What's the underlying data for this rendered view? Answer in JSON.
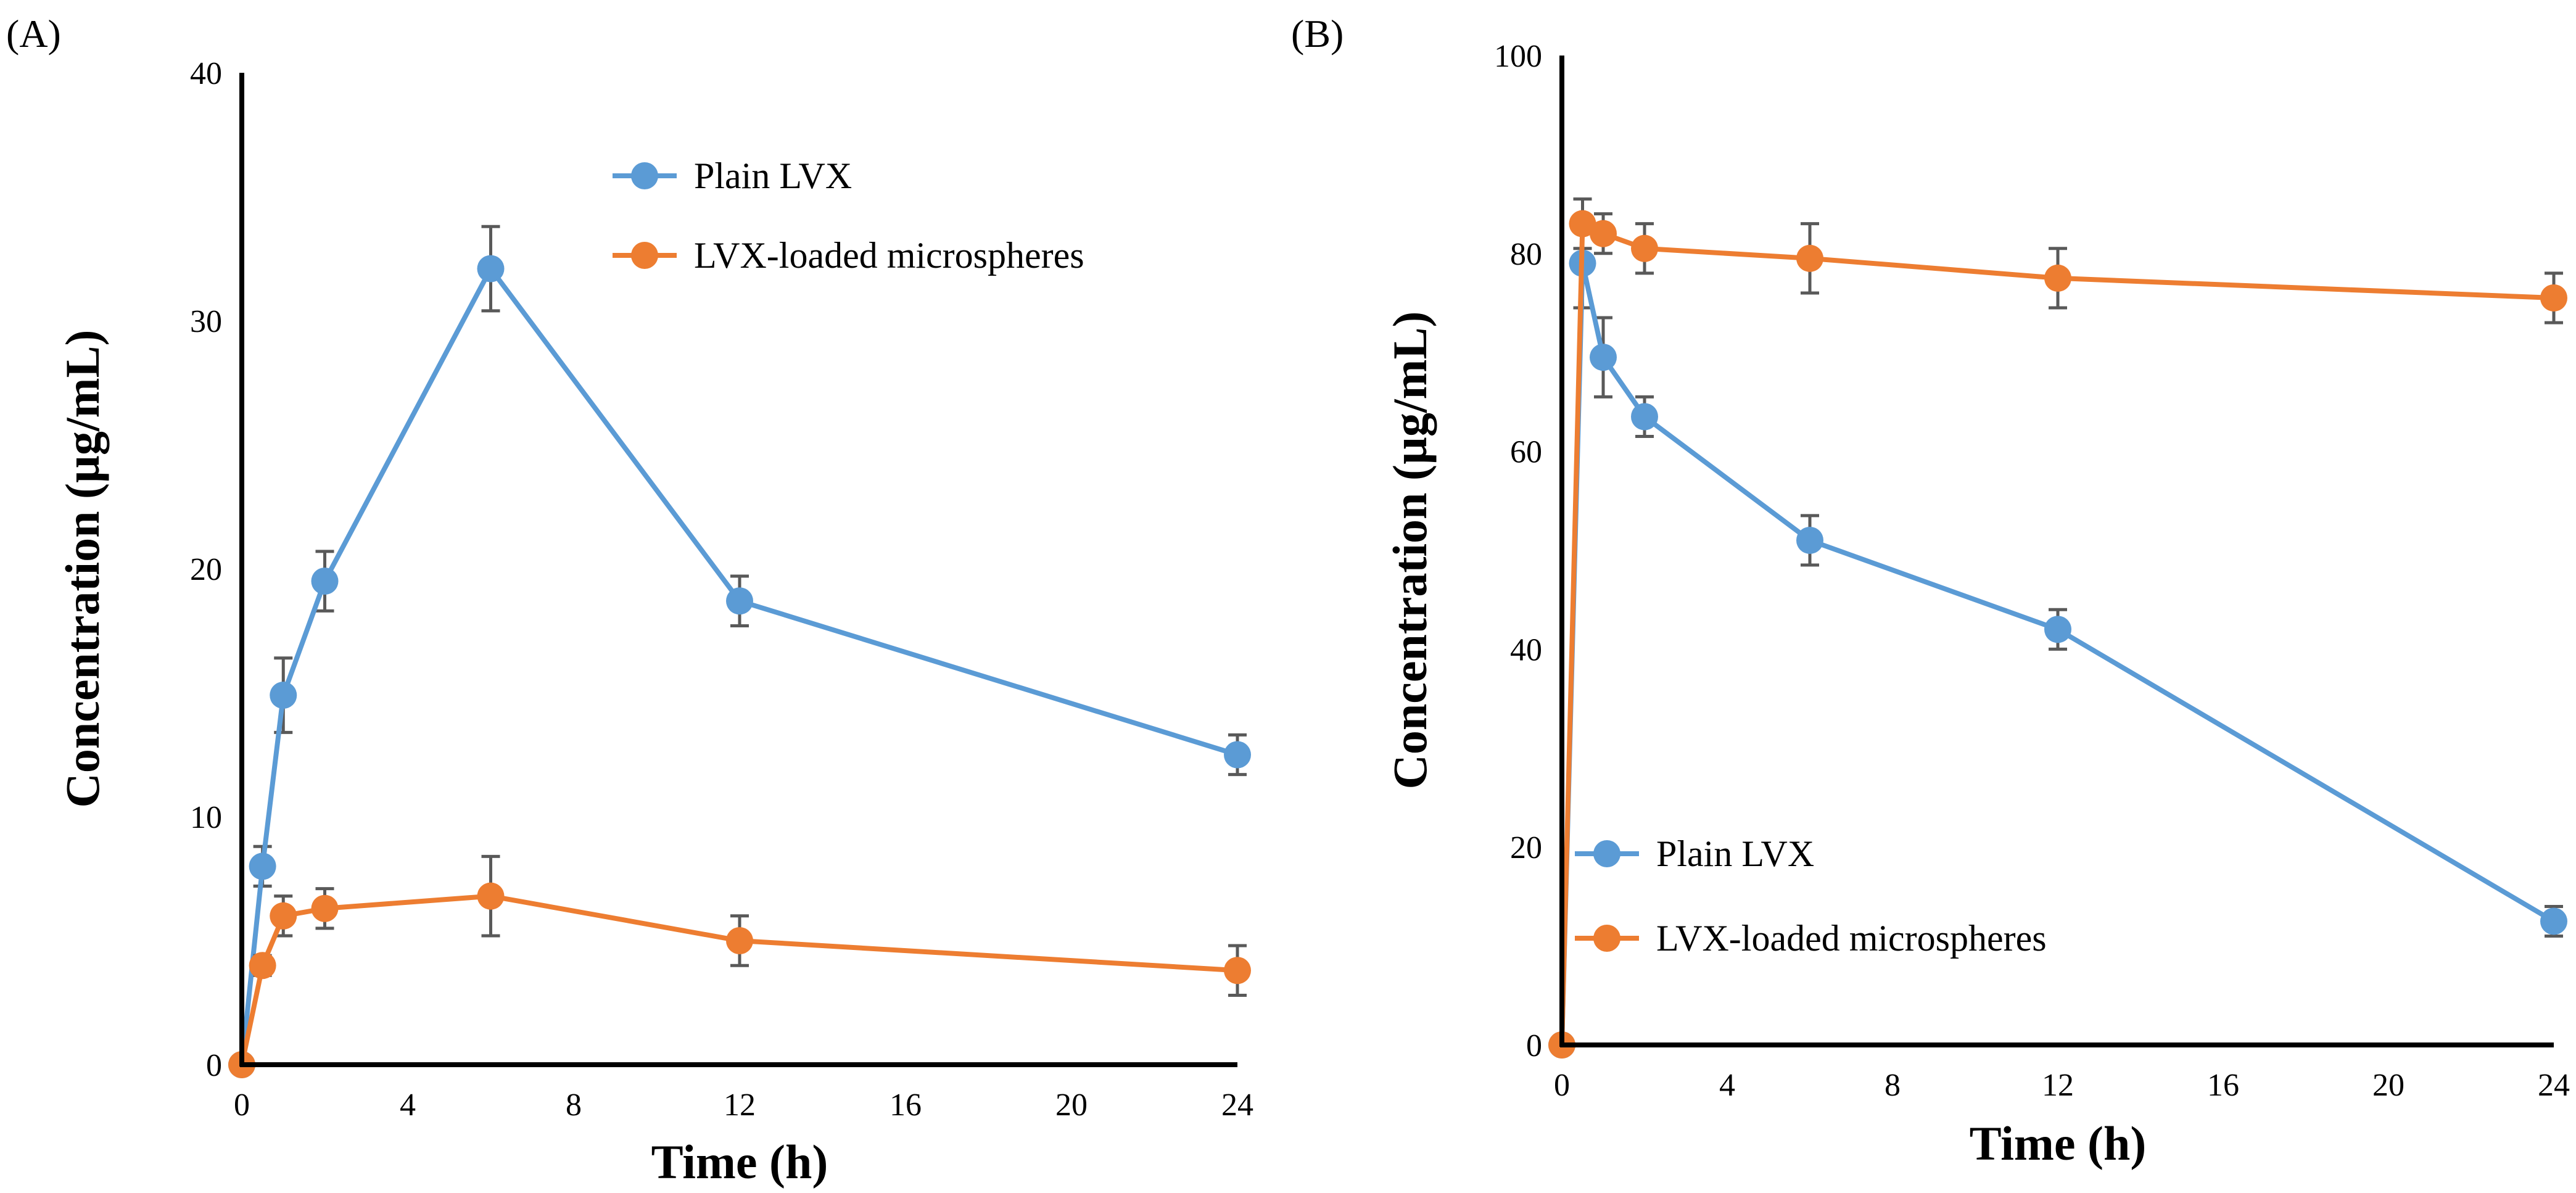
{
  "chart_data": [
    {
      "type": "line",
      "panel_label": "(A)",
      "xlabel": "Time (h)",
      "ylabel": "Concentration (µg/mL)",
      "xlim": [
        0,
        24
      ],
      "ylim": [
        0,
        40
      ],
      "xticks": [
        0,
        4,
        8,
        12,
        16,
        20,
        24
      ],
      "yticks": [
        0,
        10,
        20,
        30,
        40
      ],
      "grid": false,
      "legend_position": "top-right",
      "series": [
        {
          "name": "Plain LVX",
          "color": "#5B9BD5",
          "x": [
            0,
            0.5,
            1,
            2,
            6,
            12,
            24
          ],
          "y": [
            0,
            8.0,
            14.9,
            19.5,
            32.1,
            18.7,
            12.5
          ],
          "err": [
            0,
            0.8,
            1.5,
            1.2,
            1.7,
            1.0,
            0.8
          ]
        },
        {
          "name": "LVX-loaded microspheres",
          "color": "#ED7D31",
          "x": [
            0,
            0.5,
            1,
            2,
            6,
            12,
            24
          ],
          "y": [
            0,
            4.0,
            6.0,
            6.3,
            6.8,
            5.0,
            3.8
          ],
          "err": [
            0,
            0.4,
            0.8,
            0.8,
            1.6,
            1.0,
            1.0
          ]
        }
      ]
    },
    {
      "type": "line",
      "panel_label": "(B)",
      "xlabel": "Time (h)",
      "ylabel": "Concentration (µg/mL)",
      "xlim": [
        0,
        24
      ],
      "ylim": [
        0,
        100
      ],
      "xticks": [
        0,
        4,
        8,
        12,
        16,
        20,
        24
      ],
      "yticks": [
        0,
        20,
        40,
        60,
        80,
        100
      ],
      "grid": false,
      "legend_position": "bottom-left",
      "series": [
        {
          "name": "Plain LVX",
          "color": "#5B9BD5",
          "x": [
            0,
            0.5,
            1,
            2,
            6,
            12,
            24
          ],
          "y": [
            0,
            79,
            69.5,
            63.5,
            51,
            42,
            12.5
          ],
          "err": [
            0,
            4.5,
            4,
            2,
            2.5,
            2,
            1.5
          ]
        },
        {
          "name": "LVX-loaded microspheres",
          "color": "#ED7D31",
          "x": [
            0,
            0.5,
            1,
            2,
            6,
            12,
            24
          ],
          "y": [
            0,
            83,
            82,
            80.5,
            79.5,
            77.5,
            75.5
          ],
          "err": [
            0,
            2.5,
            2,
            2.5,
            3.5,
            3,
            2.5
          ]
        }
      ]
    }
  ]
}
